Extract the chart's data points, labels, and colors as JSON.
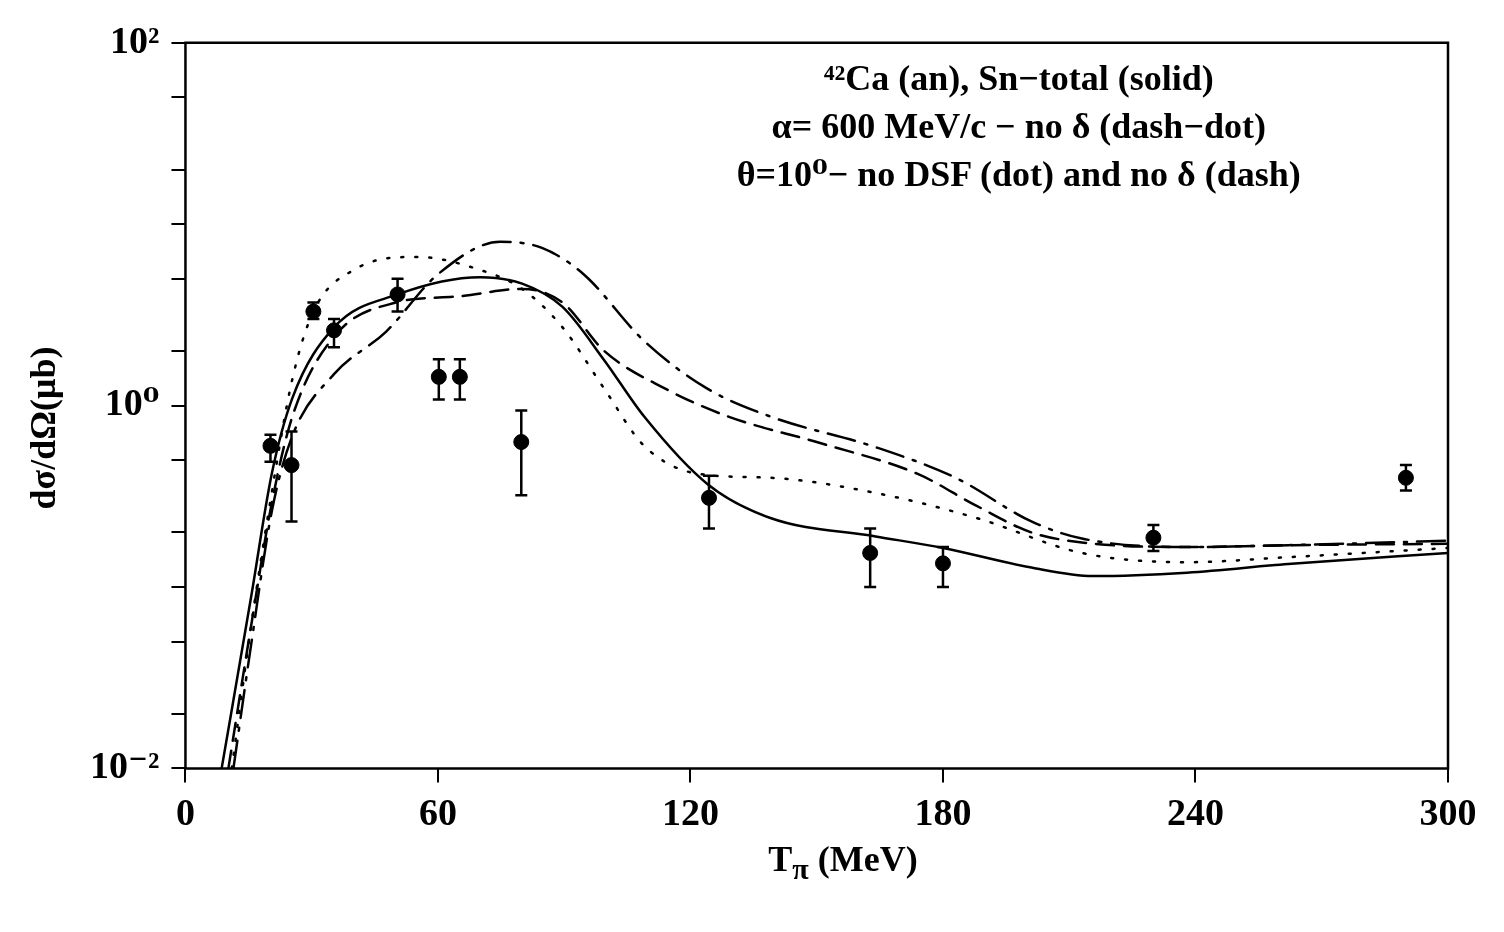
{
  "chart_data": {
    "type": "line",
    "xlabel": "T$_{π}$ (MeV)",
    "ylabel": "dσ/dΩ(μb)",
    "log": "y",
    "xlim": [
      0,
      300
    ],
    "xticks": [
      0,
      60,
      120,
      180,
      240,
      300
    ],
    "ylim": [
      0.01,
      100
    ],
    "yticks": [
      {
        "value": 0.01,
        "label": "10⁻²"
      },
      {
        "value": 0.02,
        "label": null
      },
      {
        "value": 0.05,
        "label": null
      },
      {
        "value": 0.1,
        "label": null
      },
      {
        "value": 0.2,
        "label": null
      },
      {
        "value": 0.5,
        "label": null
      },
      {
        "value": 1,
        "label": "10⁰"
      },
      {
        "value": 2,
        "label": null
      },
      {
        "value": 5,
        "label": null
      },
      {
        "value": 10,
        "label": null
      },
      {
        "value": 20,
        "label": null
      },
      {
        "value": 50,
        "label": null
      },
      {
        "value": 100,
        "label": "10²"
      }
    ],
    "annotations": [
      "⁴²Ca (an), Sn−total (solid)",
      "α= 600 MeV/c − no δ (dash−dot)",
      "θ=10⁰− no DSF (dot) and no δ (dash)"
    ],
    "series": [
      {
        "color": "#000000",
        "line_style": "solid",
        "x": [
          8.6,
          15.6,
          20.5,
          25.4,
          35.3,
          50.4,
          70,
          80,
          89.6,
          99.5,
          109,
          124,
          139,
          164,
          180,
          201,
          215.6,
          238,
          262,
          300
        ],
        "values": [
          0.01,
          0.088,
          0.42,
          1.1,
          2.7,
          4.1,
          5.1,
          4.7,
          3.5,
          1.78,
          0.87,
          0.37,
          0.24,
          0.19,
          0.164,
          0.128,
          0.115,
          0.12,
          0.134,
          0.154
        ]
      },
      {
        "color": "#000000",
        "line_style": "dotted",
        "x": [
          11,
          15.6,
          20.5,
          25.4,
          30.4,
          40,
          55,
          70,
          80,
          89.6,
          99.5,
          109,
          122,
          139,
          164,
          188,
          213,
          238,
          262,
          300
        ],
        "values": [
          0.01,
          0.061,
          0.33,
          1.4,
          3.3,
          5.6,
          6.6,
          5.6,
          4.4,
          2.7,
          1.24,
          0.6,
          0.42,
          0.4,
          0.33,
          0.24,
          0.154,
          0.137,
          0.146,
          0.164
        ]
      },
      {
        "color": "#000000",
        "line_style": "dashed",
        "x": [
          10.2,
          15.6,
          20.5,
          25.4,
          35.3,
          50,
          65,
          80,
          89.6,
          99.5,
          114,
          129,
          151,
          174,
          188,
          201,
          213,
          238,
          262,
          300
        ],
        "values": [
          0.01,
          0.061,
          0.29,
          0.87,
          2.4,
          3.7,
          4,
          4.4,
          3.7,
          2,
          1.24,
          0.87,
          0.62,
          0.42,
          0.28,
          0.2,
          0.176,
          0.166,
          0.17,
          0.173
        ]
      },
      {
        "color": "#000000",
        "line_style": "dashdot",
        "x": [
          11.4,
          15.6,
          20.5,
          25.4,
          35.3,
          47.7,
          60,
          74.8,
          84.7,
          94.6,
          109,
          124,
          139,
          164,
          183,
          201,
          213,
          238,
          262,
          300
        ],
        "values": [
          0.01,
          0.048,
          0.26,
          0.68,
          1.49,
          2.56,
          5.3,
          8,
          7.4,
          5.3,
          2.27,
          1.24,
          0.87,
          0.59,
          0.4,
          0.23,
          0.185,
          0.166,
          0.17,
          0.18
        ]
      },
      {
        "type": "scatter",
        "color": "#000000",
        "marker": "circle",
        "x": [
          20.2,
          25.2,
          30.4,
          35.3,
          50.4,
          60.2,
          65.2,
          79.8,
          124.4,
          162.7,
          180,
          230,
          290
        ],
        "values": [
          0.6,
          0.47,
          3.3,
          2.6,
          4.1,
          1.44,
          1.44,
          0.63,
          0.31,
          0.154,
          0.135,
          0.187,
          0.4
        ],
        "errors": [
          [
            0.49,
            0.69
          ],
          [
            0.23,
            0.72
          ],
          [
            3.0,
            3.7
          ],
          [
            2.1,
            3.0
          ],
          [
            3.3,
            5.0
          ],
          [
            1.08,
            1.8
          ],
          [
            1.08,
            1.8
          ],
          [
            0.32,
            0.94
          ],
          [
            0.21,
            0.41
          ],
          [
            0.1,
            0.21
          ],
          [
            0.1,
            0.166
          ],
          [
            0.158,
            0.22
          ],
          [
            0.34,
            0.47
          ]
        ]
      }
    ]
  }
}
